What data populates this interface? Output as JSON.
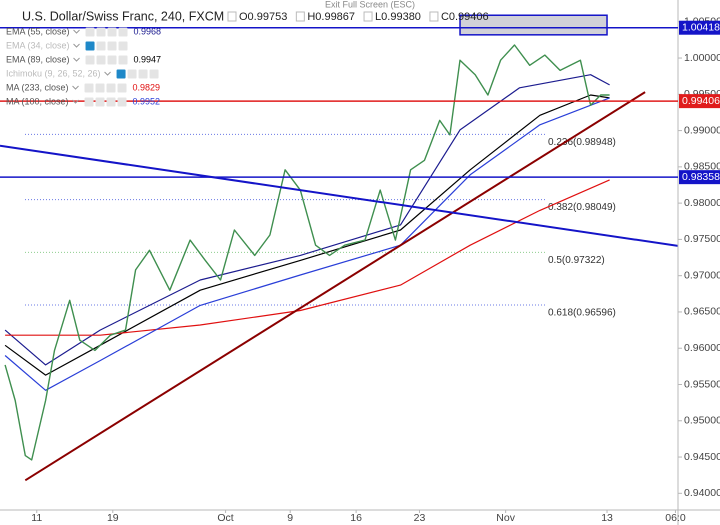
{
  "chart_data": {
    "type": "line",
    "title": "U.S. Dollar/Swiss Franc, 240, FXCM",
    "ohlc": [
      "O0.99753",
      "H0.99867",
      "L0.99380",
      "C0.99406"
    ],
    "tooltip": "Exit Full Screen (ESC)",
    "xlim": [
      0,
      53.5
    ],
    "ylim": [
      0.9377,
      1.008
    ],
    "xticks": [
      {
        "value": 2.9,
        "label": "11"
      },
      {
        "value": 8.9,
        "label": "19"
      },
      {
        "value": 17.8,
        "label": "Oct"
      },
      {
        "value": 22.9,
        "label": "9"
      },
      {
        "value": 28.1,
        "label": "16"
      },
      {
        "value": 33.1,
        "label": "23"
      },
      {
        "value": 39.9,
        "label": "Nov"
      },
      {
        "value": 47.9,
        "label": "13"
      },
      {
        "value": 53.3,
        "label": "06:0"
      }
    ],
    "yticks": [
      {
        "value": 0.94,
        "label": "0.94000"
      },
      {
        "value": 0.945,
        "label": "0.94500"
      },
      {
        "value": 0.95,
        "label": "0.95000"
      },
      {
        "value": 0.955,
        "label": "0.95500"
      },
      {
        "value": 0.96,
        "label": "0.96000"
      },
      {
        "value": 0.965,
        "label": "0.96500"
      },
      {
        "value": 0.97,
        "label": "0.97000"
      },
      {
        "value": 0.975,
        "label": "0.97500"
      },
      {
        "value": 0.98,
        "label": "0.98000"
      },
      {
        "value": 0.985,
        "label": "0.98500"
      },
      {
        "value": 0.99,
        "label": "0.99000"
      },
      {
        "value": 0.995,
        "label": "0.99500"
      },
      {
        "value": 1.0,
        "label": "1.00000"
      },
      {
        "value": 1.005,
        "label": "1.00500"
      }
    ],
    "grid": false,
    "price": {
      "color": "#3f8f4f",
      "x": [
        0.4,
        1.2,
        2.0,
        2.5,
        3.6,
        4.3,
        5.5,
        6.3,
        7.5,
        8.7,
        9.9,
        10.7,
        11.8,
        13.4,
        15.0,
        16.2,
        17.4,
        18.5,
        20.1,
        21.3,
        22.5,
        23.7,
        24.9,
        26.0,
        27.2,
        28.8,
        30.0,
        31.2,
        32.4,
        33.5,
        34.7,
        35.5,
        36.3,
        37.5,
        38.5,
        39.5,
        40.6,
        41.8,
        43.0,
        44.2,
        45.8,
        46.6,
        47.4,
        48.1
      ],
      "values": [
        0.9577,
        0.9528,
        0.9452,
        0.9446,
        0.9528,
        0.9597,
        0.9666,
        0.9611,
        0.9597,
        0.9618,
        0.9625,
        0.9708,
        0.9735,
        0.968,
        0.9749,
        0.9721,
        0.9694,
        0.9763,
        0.9728,
        0.9756,
        0.9846,
        0.9818,
        0.9742,
        0.9728,
        0.9742,
        0.9749,
        0.9818,
        0.9749,
        0.9846,
        0.9859,
        0.9914,
        0.9894,
        0.9997,
        0.9977,
        0.9949,
        0.9997,
        1.0018,
        0.999,
        1.0004,
        0.9983,
        0.9997,
        0.9935,
        0.9949,
        0.9949
      ]
    },
    "indicators": [
      {
        "name": "EMA (55, close)",
        "visible": true,
        "color": "#1c1c8f",
        "last": "0.9968",
        "x": [
          0.4,
          3.6,
          7.9,
          15.8,
          23.7,
          31.6,
          36.3,
          41.0,
          46.6,
          48.1
        ],
        "values": [
          0.9625,
          0.9577,
          0.9625,
          0.9694,
          0.9728,
          0.977,
          0.9901,
          0.9959,
          0.9977,
          0.9963
        ]
      },
      {
        "name": "EMA (34, close)",
        "visible": false
      },
      {
        "name": "EMA (89, close)",
        "visible": true,
        "color": "#000000",
        "last": "0.9947",
        "x": [
          0.4,
          3.6,
          7.9,
          15.8,
          23.7,
          31.6,
          37.1,
          42.6,
          46.6,
          48.1
        ],
        "values": [
          0.9604,
          0.9563,
          0.9604,
          0.968,
          0.9721,
          0.9763,
          0.9846,
          0.9921,
          0.9949,
          0.9945
        ]
      },
      {
        "name": "Ichimoku (9, 26, 52, 26)",
        "visible": false
      },
      {
        "name": "MA (233, close)",
        "visible": true,
        "color": "#e01010",
        "last": "0.9829",
        "x": [
          0.4,
          7.9,
          15.8,
          23.7,
          31.6,
          37.1,
          42.6,
          48.1
        ],
        "values": [
          0.9618,
          0.9618,
          0.9632,
          0.9652,
          0.9687,
          0.9742,
          0.979,
          0.9832
        ]
      },
      {
        "name": "MA (100, close)",
        "visible": true,
        "color": "#2a3fd8",
        "last": "0.9952",
        "x": [
          0.4,
          3.6,
          7.9,
          15.8,
          23.7,
          31.6,
          37.1,
          42.6,
          48.1
        ],
        "values": [
          0.959,
          0.9542,
          0.9583,
          0.9659,
          0.9701,
          0.9742,
          0.9839,
          0.9908,
          0.9945
        ]
      }
    ],
    "horizontal_lines": [
      {
        "value": 1.00418,
        "color": "#1414c8"
      },
      {
        "value": 0.99406,
        "color": "#e01b1b"
      },
      {
        "value": 0.98358,
        "color": "#1414c8"
      }
    ],
    "trend_lines": [
      {
        "color": "#8b0000",
        "x": [
          2.0,
          50.9
        ],
        "values": [
          0.9418,
          0.9953
        ]
      },
      {
        "color": "#1414c8",
        "x": [
          0,
          53.5
        ],
        "values": [
          0.9879,
          0.9741
        ]
      }
    ],
    "zone": {
      "color": "#9a9aa8",
      "x": [
        36.3,
        47.9
      ],
      "values": [
        1.0059,
        1.0032
      ]
    },
    "fib_levels": [
      {
        "label": "0.236(0.98948)",
        "value": 0.98948,
        "color": "#2a3fd8"
      },
      {
        "label": "0.382(0.98049)",
        "value": 0.98049,
        "color": "#2a3fd8"
      },
      {
        "label": "0.5(0.97322)",
        "value": 0.97322,
        "color": "#5cb85c"
      },
      {
        "label": "0.618(0.96596)",
        "value": 0.96596,
        "color": "#2a3fd8"
      }
    ]
  }
}
